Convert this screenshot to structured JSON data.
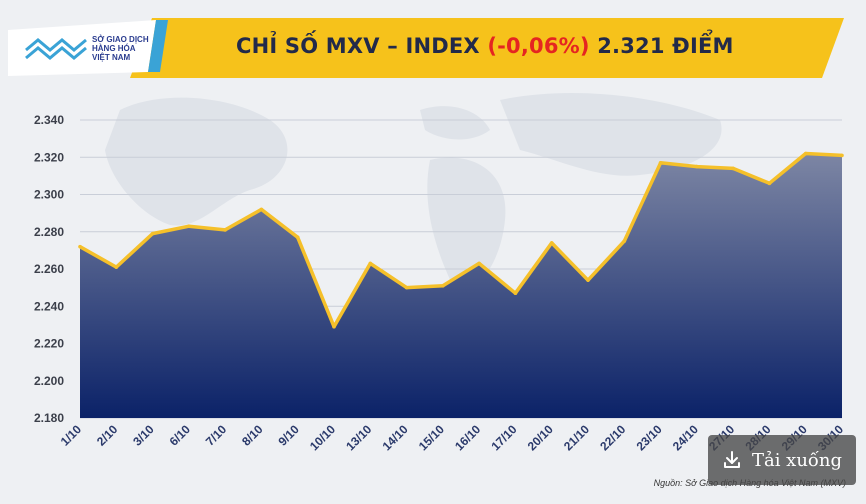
{
  "header": {
    "logo_text_lines": [
      "SỞ GIAO DỊCH",
      "HÀNG HÓA",
      "VIỆT NAM"
    ],
    "title_prefix": "CHỈ SỐ MXV – INDEX ",
    "title_change": "(-0,06%)",
    "title_suffix": " 2.321 ĐIỂM"
  },
  "source": "Nguồn: Sở Giao dịch Hàng hóa Việt Nam (MXV)",
  "download_button": {
    "label": "Tải xuống",
    "icon": "download-icon"
  },
  "colors": {
    "banner": "#f6c21b",
    "line": "#f5c02a",
    "area_top": "#7d86a4",
    "area_bottom": "#0b2268",
    "change": "#e52521"
  },
  "chart_data": {
    "type": "area",
    "title": "CHỈ SỐ MXV – INDEX (-0,06%) 2.321 ĐIỂM",
    "xlabel": "",
    "ylabel": "",
    "categories": [
      "1/10",
      "2/10",
      "3/10",
      "6/10",
      "7/10",
      "8/10",
      "9/10",
      "10/10",
      "13/10",
      "14/10",
      "15/10",
      "16/10",
      "17/10",
      "20/10",
      "21/10",
      "22/10",
      "23/10",
      "24/10",
      "27/10",
      "28/10",
      "29/10",
      "30/10"
    ],
    "series": [
      {
        "values": [
          2272,
          2261,
          2279,
          2283,
          2281,
          2292,
          2277,
          2229,
          2263,
          2250,
          2251,
          2263,
          2247,
          2274,
          2254,
          2275,
          2317,
          2315,
          2314,
          2306,
          2322,
          2321
        ]
      }
    ],
    "y_ticks": [
      "2.180",
      "2.200",
      "2.220",
      "2.240",
      "2.260",
      "2.280",
      "2.300",
      "2.320",
      "2.340"
    ],
    "ylim": [
      2180,
      2340
    ],
    "grid": true,
    "legend": "none"
  }
}
